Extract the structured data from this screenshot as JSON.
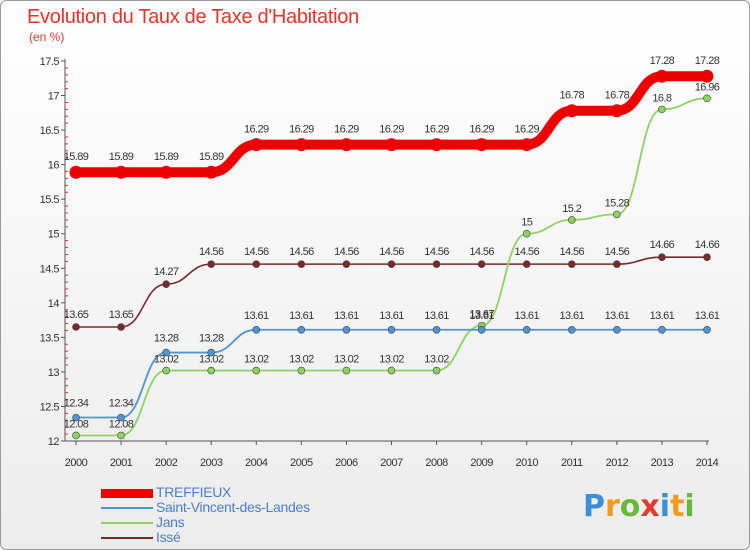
{
  "chart_data": {
    "type": "line",
    "title": "Evolution du Taux de Taxe d'Habitation",
    "subtitle": "(en %)",
    "x": [
      "2000",
      "2001",
      "2002",
      "2003",
      "2004",
      "2005",
      "2006",
      "2007",
      "2008",
      "2009",
      "2010",
      "2011",
      "2012",
      "2013",
      "2014"
    ],
    "ylim": [
      12,
      17.5
    ],
    "yticks": [
      "12",
      "12.5",
      "13",
      "13.5",
      "14",
      "14.5",
      "15",
      "15.5",
      "16",
      "16.5",
      "17",
      "17.5"
    ],
    "grid": false,
    "legend_position": "bottom-left",
    "series": [
      {
        "name": "TREFFIEUX",
        "color": "#ee0000",
        "values": [
          15.89,
          15.89,
          15.89,
          15.89,
          16.29,
          16.29,
          16.29,
          16.29,
          16.29,
          16.29,
          16.29,
          16.78,
          16.78,
          17.28,
          17.28
        ],
        "labels": [
          "15.89",
          "15.89",
          "15.89",
          "15.89",
          "16.29",
          "16.29",
          "16.29",
          "16.29",
          "16.29",
          "16.29",
          "16.29",
          "16.78",
          "16.78",
          "17.28",
          "17.28"
        ]
      },
      {
        "name": "Saint-Vincent-des-Landes",
        "color": "#4f94d4",
        "values": [
          12.34,
          12.34,
          13.28,
          13.28,
          13.61,
          13.61,
          13.61,
          13.61,
          13.61,
          13.61,
          13.61,
          13.61,
          13.61,
          13.61,
          13.61
        ],
        "labels": [
          "12.34",
          "12.34",
          "13.28",
          "13.28",
          "13.61",
          "13.61",
          "13.61",
          "13.61",
          "13.61",
          "13.61",
          "13.61",
          "13.61",
          "13.61",
          "13.61",
          "13.61"
        ]
      },
      {
        "name": "Jans",
        "color": "#8dd364",
        "values": [
          12.08,
          12.08,
          13.02,
          13.02,
          13.02,
          13.02,
          13.02,
          13.02,
          13.02,
          13.67,
          15,
          15.2,
          15.28,
          16.8,
          16.96
        ],
        "labels": [
          "12.08",
          "12.08",
          "13.02",
          "13.02",
          "13.02",
          "13.02",
          "13.02",
          "13.02",
          "13.02",
          "13.67",
          "15",
          "15.2",
          "15.28",
          "16.8",
          "16.96"
        ]
      },
      {
        "name": "Issé",
        "color": "#7a2a2a",
        "values": [
          13.65,
          13.65,
          14.27,
          14.56,
          14.56,
          14.56,
          14.56,
          14.56,
          14.56,
          14.56,
          14.56,
          14.56,
          14.56,
          14.66,
          14.66
        ],
        "labels": [
          "13.65",
          "13.65",
          "14.27",
          "14.56",
          "14.56",
          "14.56",
          "14.56",
          "14.56",
          "14.56",
          "14.56",
          "14.56",
          "14.56",
          "14.56",
          "14.66",
          "14.66"
        ]
      }
    ]
  },
  "logo": {
    "letters": [
      "P",
      "r",
      "o",
      "x",
      "i",
      "t",
      "i"
    ],
    "colors": [
      "#3a8fd8",
      "#f29a1a",
      "#6ab83a",
      "#e23c2c",
      "#3a8fd8",
      "#f29a1a",
      "#6ab83a"
    ]
  }
}
